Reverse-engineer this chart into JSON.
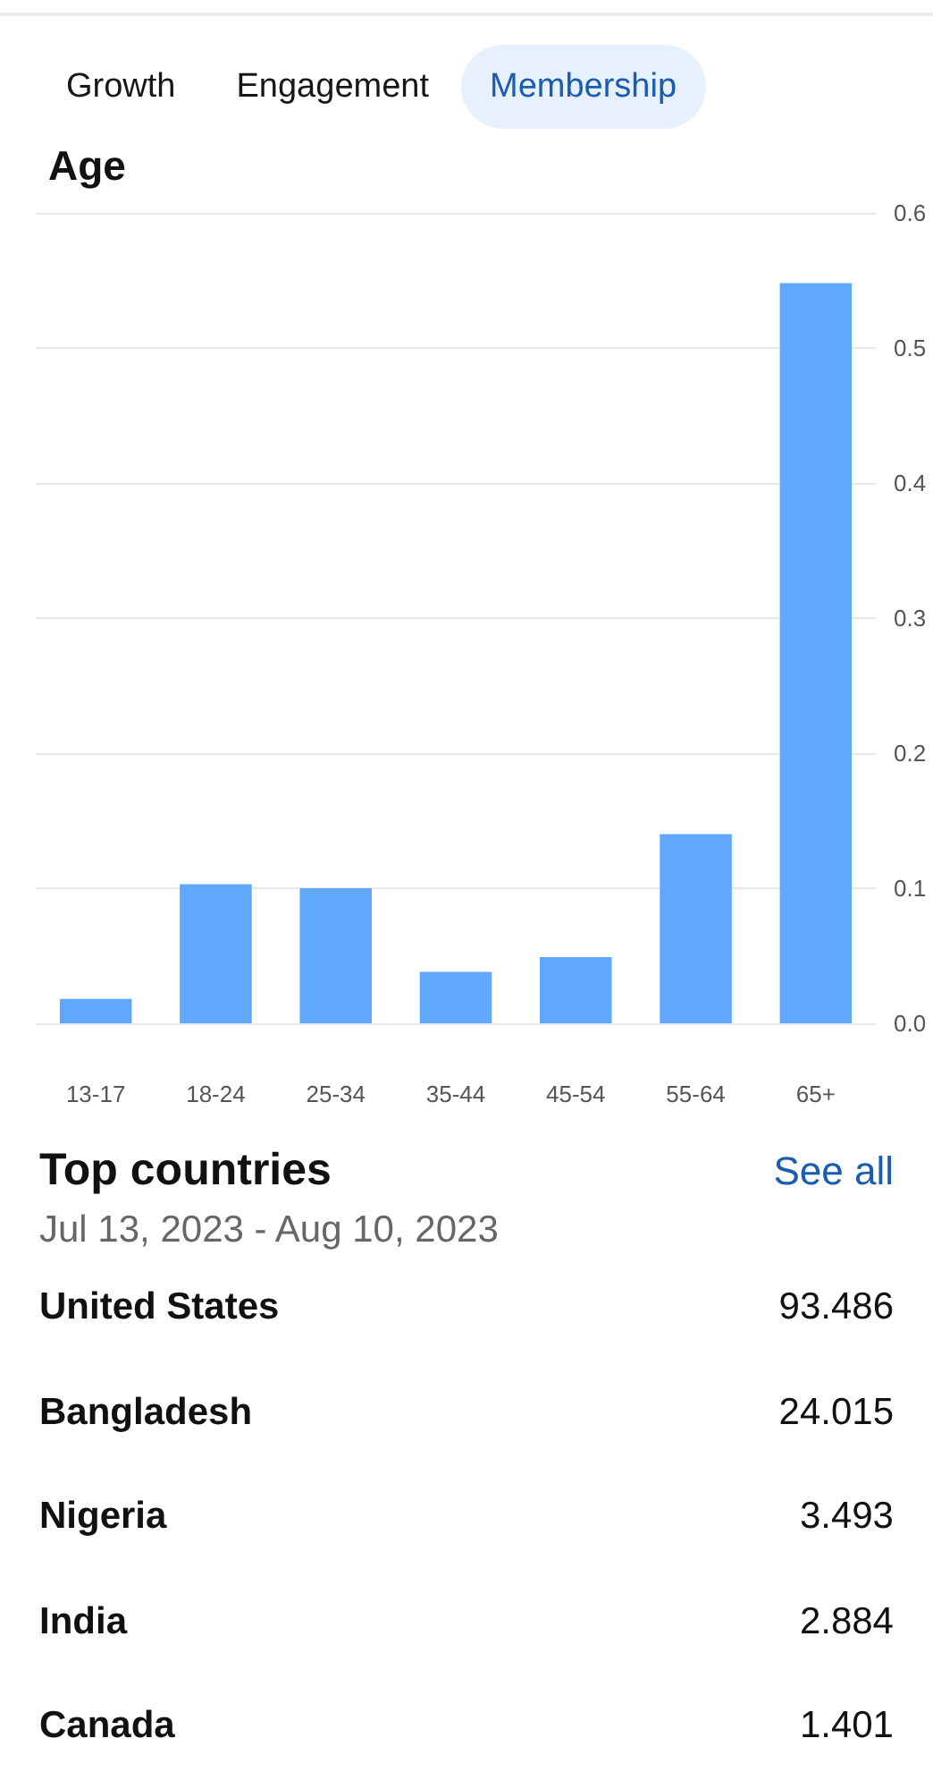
{
  "chart_data": [
    {
      "type": "other",
      "annotations": [
        "Growth",
        "Engagement",
        "Membership"
      ]
    },
    {
      "type": "bar",
      "title": "Age",
      "categories": [
        "13-17",
        "18-24",
        "25-34",
        "35-44",
        "45-54",
        "55-64",
        "65+"
      ],
      "values": [
        0.018,
        0.103,
        0.1,
        0.038,
        0.049,
        0.14,
        0.548
      ],
      "color": "#60a8fc",
      "ylim": [
        0,
        0.6
      ],
      "yticks": [
        {
          "value": 0,
          "label": "0.0"
        },
        0.1,
        0.2,
        0.3,
        0.4,
        0.5,
        0.6
      ],
      "grid": "y"
    },
    {
      "type": "other",
      "title": "Top countries",
      "subtitle": "Jul 13, 2023 - Aug 10, 2023",
      "categories": [
        "United States",
        "Bangladesh",
        "Nigeria",
        "India",
        "Canada"
      ],
      "values": [
        93.486,
        24.015,
        3.493,
        2.884,
        1.401
      ],
      "data_labels": true,
      "annotations": [
        "See all"
      ]
    }
  ]
}
